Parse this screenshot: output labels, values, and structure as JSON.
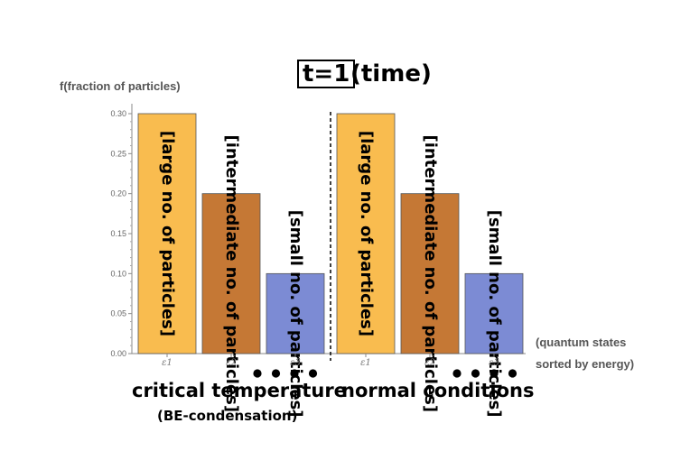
{
  "chart_data": {
    "type": "bar",
    "title_boxed": "t=1",
    "title_rest": "(time)",
    "ylabel": "f(fraction of particles)",
    "xlabel": [
      "(quantum states",
      "sorted by energy)"
    ],
    "ylim": [
      0,
      0.3
    ],
    "yticks": [
      "0.00",
      "0.05",
      "0.10",
      "0.15",
      "0.20",
      "0.25",
      "0.30"
    ],
    "groups": [
      {
        "caption": "critical temperature",
        "subcaption": "(BE-condensation)",
        "bars": [
          {
            "category": "ε1",
            "value": 0.3,
            "color": "#f9bc4f",
            "label": "[large no. of particles]"
          },
          {
            "category": "ε2",
            "value": 0.2,
            "color": "#c57835",
            "label": "[intermediate no. of particles]"
          },
          {
            "category": "ε3",
            "value": 0.1,
            "color": "#7c8bd4",
            "label": "[small no. of particles]"
          }
        ]
      },
      {
        "caption": "normal conditions",
        "bars": [
          {
            "category": "ε1",
            "value": 0.3,
            "color": "#f9bc4f",
            "label": "[large no. of particles]"
          },
          {
            "category": "ε2",
            "value": 0.2,
            "color": "#c57835",
            "label": "[intermediate no. of particles]"
          },
          {
            "category": "ε3",
            "value": 0.1,
            "color": "#7c8bd4",
            "label": "[small no. of particles]"
          }
        ]
      }
    ],
    "ellipsis": "• • • •",
    "grid": false,
    "separator": "dashed vertical line between groups"
  }
}
